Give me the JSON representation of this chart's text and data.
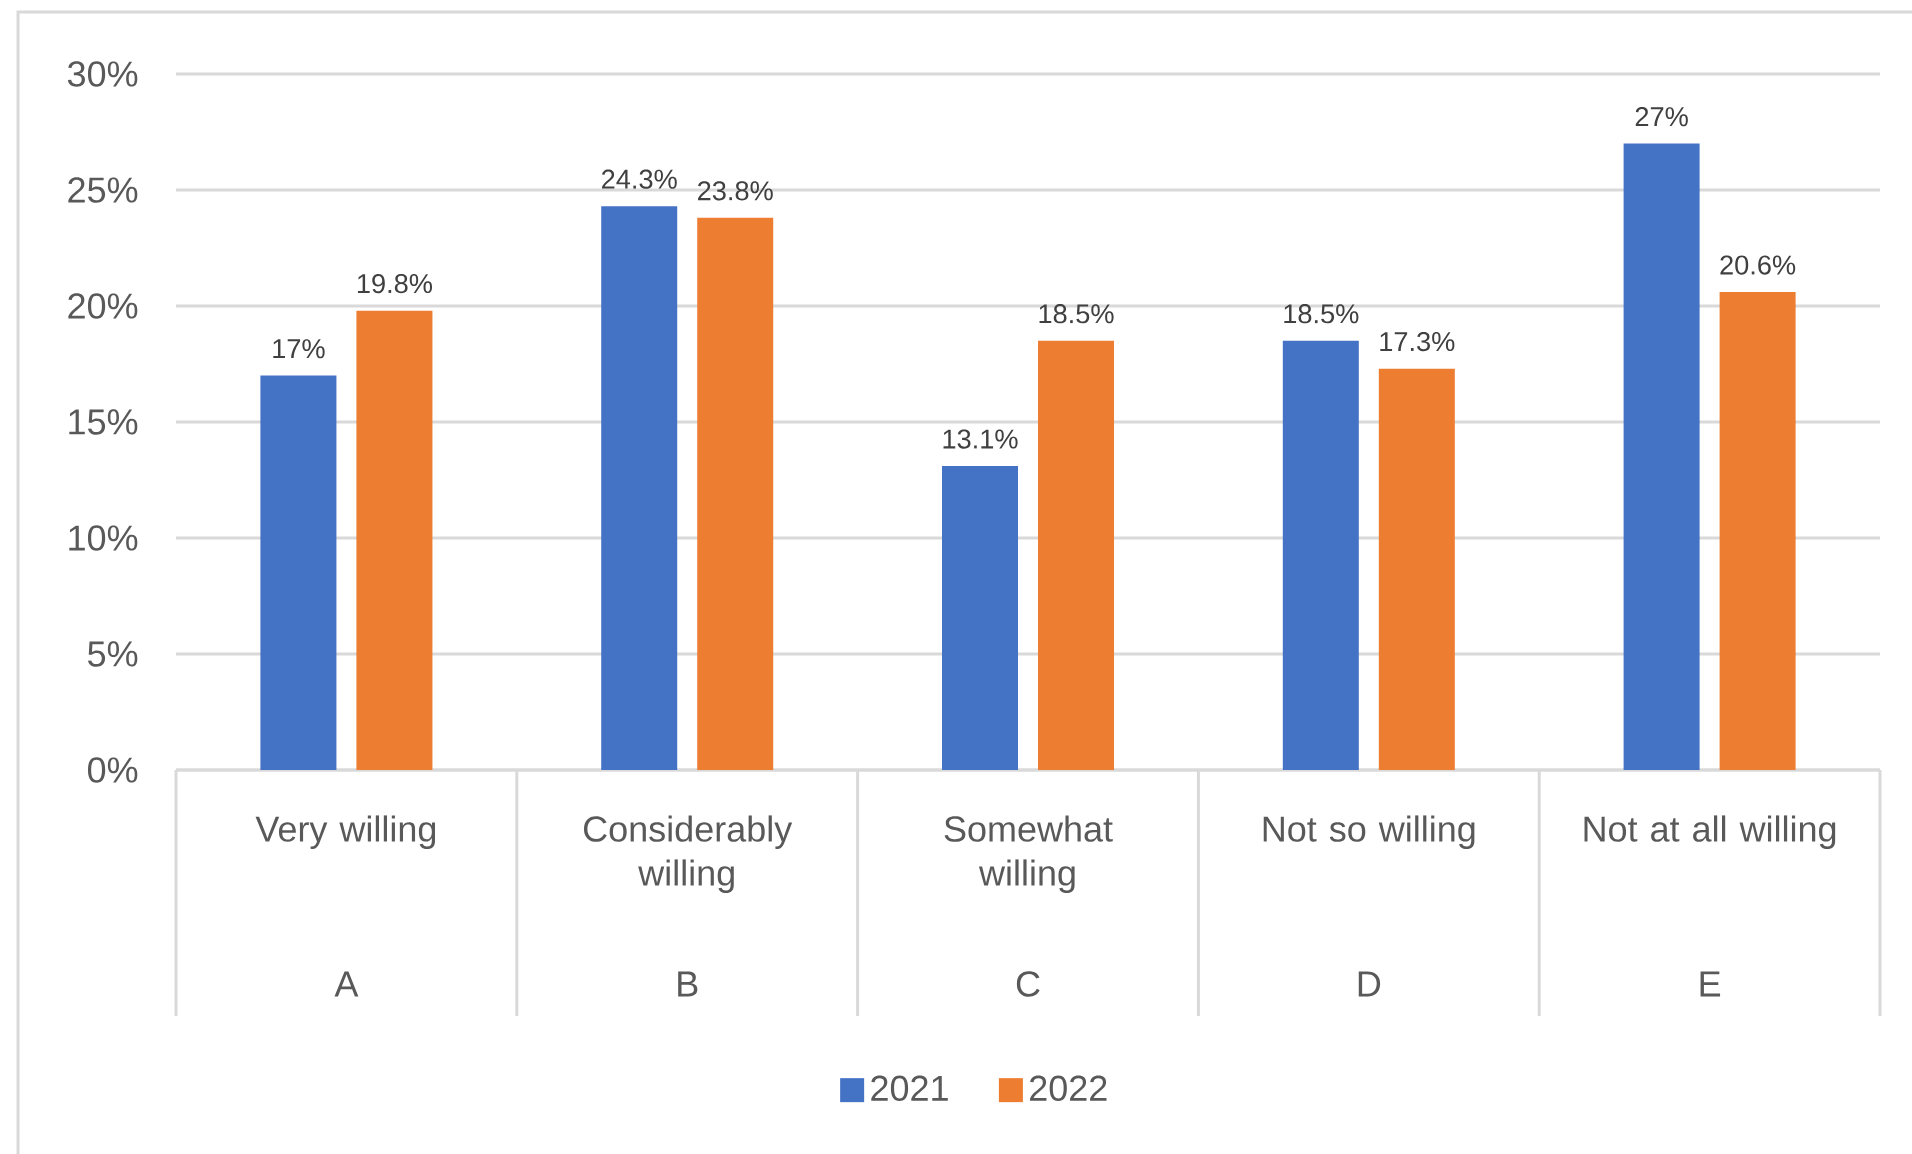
{
  "chart_data": {
    "type": "bar",
    "categories": [
      "Very willing",
      "Considerably willing",
      "Somewhat willing",
      "Not so willing",
      "Not at all willing"
    ],
    "series": [
      {
        "name": "2021",
        "color": "#4472c4",
        "values": [
          17,
          24.3,
          13.1,
          18.5,
          27
        ],
        "value_labels": [
          "17%",
          "24.3%",
          "13.1%",
          "18.5%",
          "27%"
        ]
      },
      {
        "name": "2022",
        "color": "#ed7d31",
        "values": [
          19.8,
          23.8,
          18.5,
          17.3,
          20.6
        ],
        "value_labels": [
          "19.8%",
          "23.8%",
          "18.5%",
          "17.3%",
          "20.6%"
        ]
      }
    ],
    "ylim": [
      0,
      30
    ],
    "yticks": [
      {
        "value": 0,
        "label": "0%"
      },
      {
        "value": 5,
        "label": "5%"
      },
      {
        "value": 10,
        "label": "10%"
      },
      {
        "value": 15,
        "label": "15%"
      },
      {
        "value": 20,
        "label": "20%"
      },
      {
        "value": 25,
        "label": "25%"
      },
      {
        "value": 30,
        "label": "30%"
      }
    ],
    "grid": "y",
    "legend": "bottom",
    "annotations": [
      "A",
      "B",
      "C",
      "D",
      "E"
    ]
  }
}
